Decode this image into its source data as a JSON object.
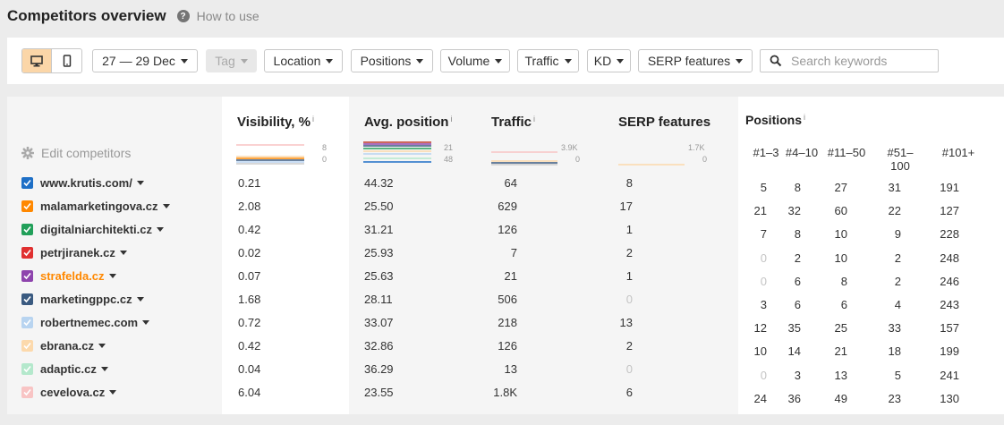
{
  "header": {
    "title": "Competitors overview",
    "help_icon": "?",
    "help_link": "How to use"
  },
  "toolbar": {
    "device_desktop_icon": "desktop-icon",
    "device_mobile_icon": "mobile-icon",
    "date_range": "27 — 29 Dec",
    "tag": "Tag",
    "location": "Location",
    "positions": "Positions",
    "volume": "Volume",
    "traffic": "Traffic",
    "kd": "KD",
    "serp_features": "SERP features",
    "search_placeholder": "Search keywords"
  },
  "sidebar": {
    "edit_competitors": "Edit competitors"
  },
  "columns": {
    "visibility": {
      "title": "Visibility, %",
      "info": "i",
      "spark_max": "8",
      "spark_min": "0"
    },
    "avg_position": {
      "title": "Avg. position",
      "info": "i",
      "spark_top": "21",
      "spark_bottom": "48"
    },
    "traffic": {
      "title": "Traffic",
      "info": "i",
      "spark_max": "3.9K",
      "spark_min": "0"
    },
    "serp": {
      "title": "SERP features",
      "spark_max": "1.7K",
      "spark_min": "0"
    },
    "positions": {
      "title": "Positions",
      "info": "i",
      "headers": [
        "#1–3",
        "#4–10",
        "#11–50",
        "#51–100",
        "#101+"
      ]
    }
  },
  "competitors": [
    {
      "domain": "www.krutis.com/",
      "color": "#1e6fc6",
      "highlight": false,
      "visibility": "0.21",
      "avg_position": "44.32",
      "traffic": "64",
      "serp": "8",
      "positions": [
        "5",
        "8",
        "27",
        "31",
        "191"
      ]
    },
    {
      "domain": "malamarketingova.cz",
      "color": "#ff8800",
      "highlight": false,
      "visibility": "2.08",
      "avg_position": "25.50",
      "traffic": "629",
      "serp": "17",
      "positions": [
        "21",
        "32",
        "60",
        "22",
        "127"
      ]
    },
    {
      "domain": "digitalniarchitekti.cz",
      "color": "#22a05a",
      "highlight": false,
      "visibility": "0.42",
      "avg_position": "31.21",
      "traffic": "126",
      "serp": "1",
      "positions": [
        "7",
        "8",
        "10",
        "9",
        "228"
      ]
    },
    {
      "domain": "petrjiranek.cz",
      "color": "#e03030",
      "highlight": false,
      "visibility": "0.02",
      "avg_position": "25.93",
      "traffic": "7",
      "serp": "2",
      "positions": [
        "0",
        "2",
        "10",
        "2",
        "248"
      ]
    },
    {
      "domain": "strafelda.cz",
      "color": "#8e44ad",
      "highlight": true,
      "visibility": "0.07",
      "avg_position": "25.63",
      "traffic": "21",
      "serp": "1",
      "positions": [
        "0",
        "6",
        "8",
        "2",
        "246"
      ]
    },
    {
      "domain": "marketingppc.cz",
      "color": "#3a5a80",
      "highlight": false,
      "visibility": "1.68",
      "avg_position": "28.11",
      "traffic": "506",
      "serp": "0",
      "positions": [
        "3",
        "6",
        "6",
        "4",
        "243"
      ]
    },
    {
      "domain": "robertnemec.com",
      "color": "#b8d4f0",
      "highlight": false,
      "visibility": "0.72",
      "avg_position": "33.07",
      "traffic": "218",
      "serp": "13",
      "positions": [
        "12",
        "35",
        "25",
        "33",
        "157"
      ]
    },
    {
      "domain": "ebrana.cz",
      "color": "#fcd9ac",
      "highlight": false,
      "visibility": "0.42",
      "avg_position": "32.86",
      "traffic": "126",
      "serp": "2",
      "positions": [
        "10",
        "14",
        "21",
        "18",
        "199"
      ]
    },
    {
      "domain": "adaptic.cz",
      "color": "#b4e8cc",
      "highlight": false,
      "visibility": "0.04",
      "avg_position": "36.29",
      "traffic": "13",
      "serp": "0",
      "positions": [
        "0",
        "3",
        "13",
        "5",
        "241"
      ]
    },
    {
      "domain": "cevelova.cz",
      "color": "#f8c4c4",
      "highlight": false,
      "visibility": "6.04",
      "avg_position": "23.55",
      "traffic": "1.8K",
      "serp": "6",
      "positions": [
        "24",
        "36",
        "49",
        "23",
        "130"
      ]
    }
  ]
}
